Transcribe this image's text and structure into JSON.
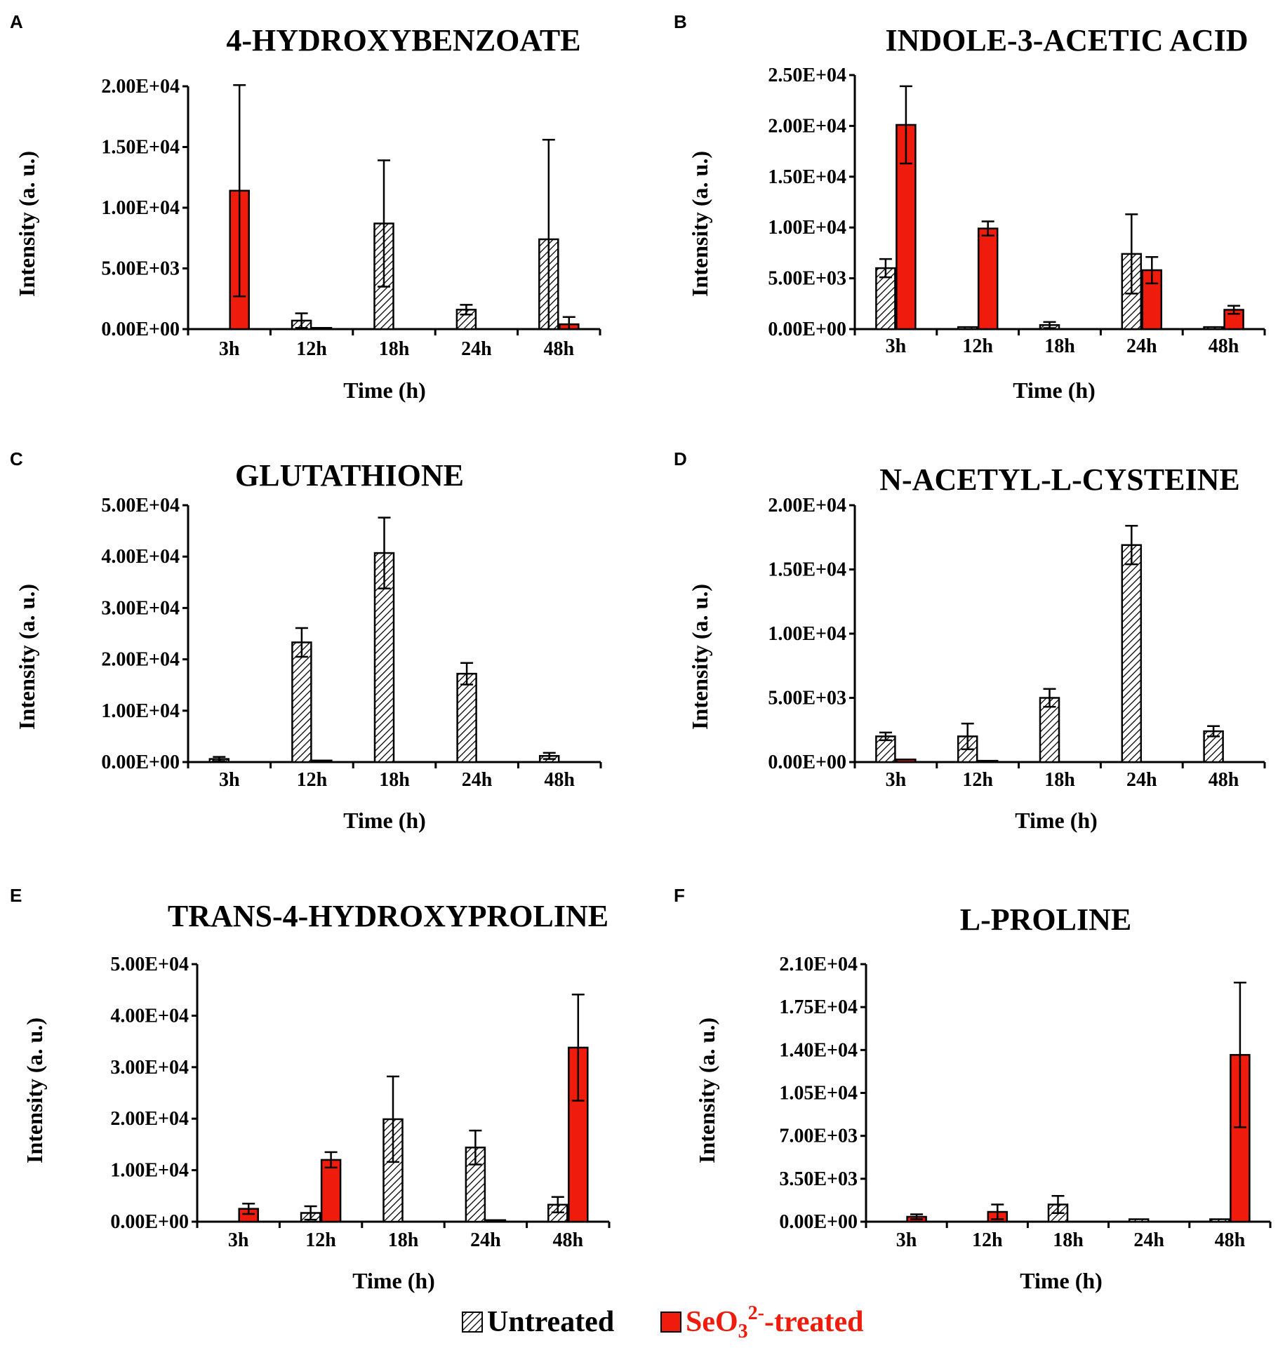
{
  "colors": {
    "untreated_stroke": "#000000",
    "treated": "#ef1b0c",
    "legend_treated_text": "#ef1b0c"
  },
  "legend": {
    "untreated": "Untreated",
    "treated_base": "SeO",
    "treated_sub": "3",
    "treated_sup": "2-",
    "treated_suffix": "-treated"
  },
  "chart_data": [
    {
      "type": "bar",
      "panel": "A",
      "title": "4-HYDROXYBENZOATE",
      "xlabel": "Time (h)",
      "ylabel": "Intensity (a. u.)",
      "categories": [
        "3h",
        "12h",
        "18h",
        "24h",
        "48h"
      ],
      "ylim": [
        0,
        20000
      ],
      "yticks": [
        "0.00E+00",
        "5.00E+03",
        "1.00E+04",
        "1.50E+04",
        "2.00E+04"
      ],
      "series": [
        {
          "name": "Untreated",
          "values": [
            0,
            700,
            8700,
            1600,
            7400
          ],
          "errors": [
            0,
            600,
            5200,
            400,
            8200
          ]
        },
        {
          "name": "SeO3 2- -treated",
          "values": [
            11400,
            100,
            0,
            0,
            400
          ],
          "errors": [
            8700,
            0,
            0,
            0,
            600
          ]
        }
      ]
    },
    {
      "type": "bar",
      "panel": "B",
      "title": "INDOLE-3-ACETIC ACID",
      "xlabel": "Time (h)",
      "ylabel": "Intensity (a. u.)",
      "categories": [
        "3h",
        "12h",
        "18h",
        "24h",
        "48h"
      ],
      "ylim": [
        0,
        25000
      ],
      "yticks": [
        "0.00E+00",
        "5.00E+03",
        "1.00E+04",
        "1.50E+04",
        "2.00E+04",
        "2.50E+04"
      ],
      "series": [
        {
          "name": "Untreated",
          "values": [
            6000,
            200,
            400,
            7400,
            200
          ],
          "errors": [
            900,
            0,
            300,
            3900,
            0
          ]
        },
        {
          "name": "SeO3 2- -treated",
          "values": [
            20100,
            9900,
            0,
            5800,
            1900
          ],
          "errors": [
            3800,
            700,
            0,
            1300,
            400
          ]
        }
      ]
    },
    {
      "type": "bar",
      "panel": "C",
      "title": "GLUTATHIONE",
      "xlabel": "Time (h)",
      "ylabel": "Intensity (a. u.)",
      "categories": [
        "3h",
        "12h",
        "18h",
        "24h",
        "48h"
      ],
      "ylim": [
        0,
        50000
      ],
      "yticks": [
        "0.00E+00",
        "1.00E+04",
        "2.00E+04",
        "3.00E+04",
        "4.00E+04",
        "5.00E+04"
      ],
      "series": [
        {
          "name": "Untreated",
          "values": [
            600,
            23300,
            40700,
            17200,
            1200
          ],
          "errors": [
            400,
            2800,
            6900,
            2100,
            600
          ]
        },
        {
          "name": "SeO3 2- -treated",
          "values": [
            0,
            300,
            0,
            0,
            0
          ],
          "errors": [
            0,
            0,
            0,
            0,
            0
          ]
        }
      ]
    },
    {
      "type": "bar",
      "panel": "D",
      "title": "N-ACETYL-L-CYSTEINE",
      "xlabel": "Time (h)",
      "ylabel": "Intensity (a. u.)",
      "categories": [
        "3h",
        "12h",
        "18h",
        "24h",
        "48h"
      ],
      "ylim": [
        0,
        20000
      ],
      "yticks": [
        "0.00E+00",
        "5.00E+03",
        "1.00E+04",
        "1.50E+04",
        "2.00E+04"
      ],
      "series": [
        {
          "name": "Untreated",
          "values": [
            2000,
            2000,
            5000,
            16900,
            2400
          ],
          "errors": [
            300,
            1000,
            700,
            1500,
            400
          ]
        },
        {
          "name": "SeO3 2- -treated",
          "values": [
            200,
            100,
            0,
            0,
            0
          ],
          "errors": [
            0,
            0,
            0,
            0,
            0
          ]
        }
      ]
    },
    {
      "type": "bar",
      "panel": "E",
      "title": "TRANS-4-HYDROXYPROLINE",
      "xlabel": "Time (h)",
      "ylabel": "Intensity (a. u.)",
      "categories": [
        "3h",
        "12h",
        "18h",
        "24h",
        "48h"
      ],
      "ylim": [
        0,
        50000
      ],
      "yticks": [
        "0.00E+00",
        "1.00E+04",
        "2.00E+04",
        "3.00E+04",
        "4.00E+04",
        "5.00E+04"
      ],
      "series": [
        {
          "name": "Untreated",
          "values": [
            0,
            1700,
            19900,
            14400,
            3300
          ],
          "errors": [
            0,
            1300,
            8300,
            3300,
            1500
          ]
        },
        {
          "name": "SeO3 2- -treated",
          "values": [
            2500,
            12000,
            0,
            300,
            33800
          ],
          "errors": [
            1000,
            1500,
            0,
            0,
            10300
          ]
        }
      ]
    },
    {
      "type": "bar",
      "panel": "F",
      "title": "L-PROLINE",
      "xlabel": "Time (h)",
      "ylabel": "Intensity (a. u.)",
      "categories": [
        "3h",
        "12h",
        "18h",
        "24h",
        "48h"
      ],
      "ylim": [
        0,
        21000
      ],
      "yticks": [
        "0.00E+00",
        "3.50E+03",
        "7.00E+03",
        "1.05E+04",
        "1.40E+04",
        "1.75E+04",
        "2.10E+04"
      ],
      "series": [
        {
          "name": "Untreated",
          "values": [
            0,
            0,
            1400,
            200,
            200
          ],
          "errors": [
            0,
            0,
            700,
            0,
            0
          ]
        },
        {
          "name": "SeO3 2- -treated",
          "values": [
            400,
            800,
            0,
            0,
            13600
          ],
          "errors": [
            200,
            600,
            0,
            0,
            5900
          ]
        }
      ]
    }
  ]
}
